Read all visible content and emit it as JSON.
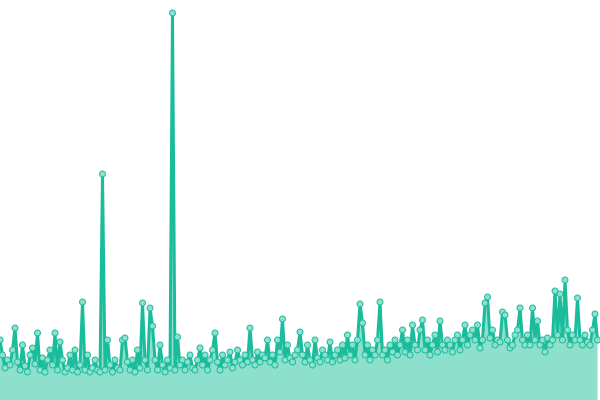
{
  "chart_data": {
    "type": "area",
    "title": "",
    "xlabel": "",
    "ylabel": "",
    "grid": false,
    "ylim": [
      0,
      400
    ],
    "colors": {
      "line": "#1abc9c",
      "fill": "#8ce0cc",
      "marker_fill": "#8ce0cc",
      "marker_stroke": "#1abc9c"
    },
    "values": [
      60,
      45,
      32,
      40,
      35,
      50,
      72,
      38,
      30,
      55,
      34,
      28,
      45,
      52,
      36,
      67,
      30,
      42,
      28,
      40,
      50,
      35,
      67,
      30,
      58,
      40,
      28,
      32,
      45,
      30,
      50,
      28,
      35,
      98,
      30,
      45,
      28,
      32,
      40,
      30,
      28,
      226,
      30,
      60,
      35,
      28,
      40,
      32,
      30,
      60,
      62,
      38,
      30,
      40,
      28,
      50,
      32,
      97,
      40,
      30,
      92,
      74,
      40,
      30,
      55,
      35,
      28,
      40,
      32,
      387,
      30,
      63,
      35,
      40,
      30,
      38,
      45,
      32,
      30,
      40,
      52,
      35,
      45,
      30,
      40,
      50,
      67,
      38,
      30,
      45,
      35,
      40,
      48,
      32,
      38,
      50,
      40,
      35,
      45,
      38,
      72,
      40,
      35,
      48,
      38,
      45,
      42,
      60,
      38,
      45,
      35,
      60,
      48,
      81,
      40,
      55,
      42,
      38,
      45,
      50,
      68,
      45,
      38,
      55,
      40,
      35,
      60,
      42,
      38,
      50,
      45,
      40,
      58,
      38,
      45,
      50,
      40,
      55,
      42,
      65,
      45,
      55,
      40,
      60,
      96,
      77,
      45,
      55,
      40,
      50,
      45,
      60,
      98,
      45,
      50,
      40,
      55,
      48,
      60,
      45,
      55,
      70,
      48,
      60,
      45,
      75,
      55,
      50,
      70,
      80,
      50,
      60,
      45,
      55,
      65,
      48,
      79,
      55,
      50,
      60,
      55,
      48,
      60,
      65,
      50,
      60,
      75,
      55,
      65,
      70,
      60,
      75,
      52,
      60,
      97,
      103,
      62,
      70,
      55,
      60,
      58,
      88,
      85,
      60,
      52,
      55,
      65,
      70,
      92,
      60,
      55,
      65,
      55,
      92,
      60,
      79,
      55,
      60,
      48,
      62,
      55,
      60,
      109,
      65,
      106,
      60,
      120,
      70,
      55,
      65,
      60,
      102,
      60,
      55,
      65,
      58,
      55,
      70,
      86,
      60
    ]
  }
}
